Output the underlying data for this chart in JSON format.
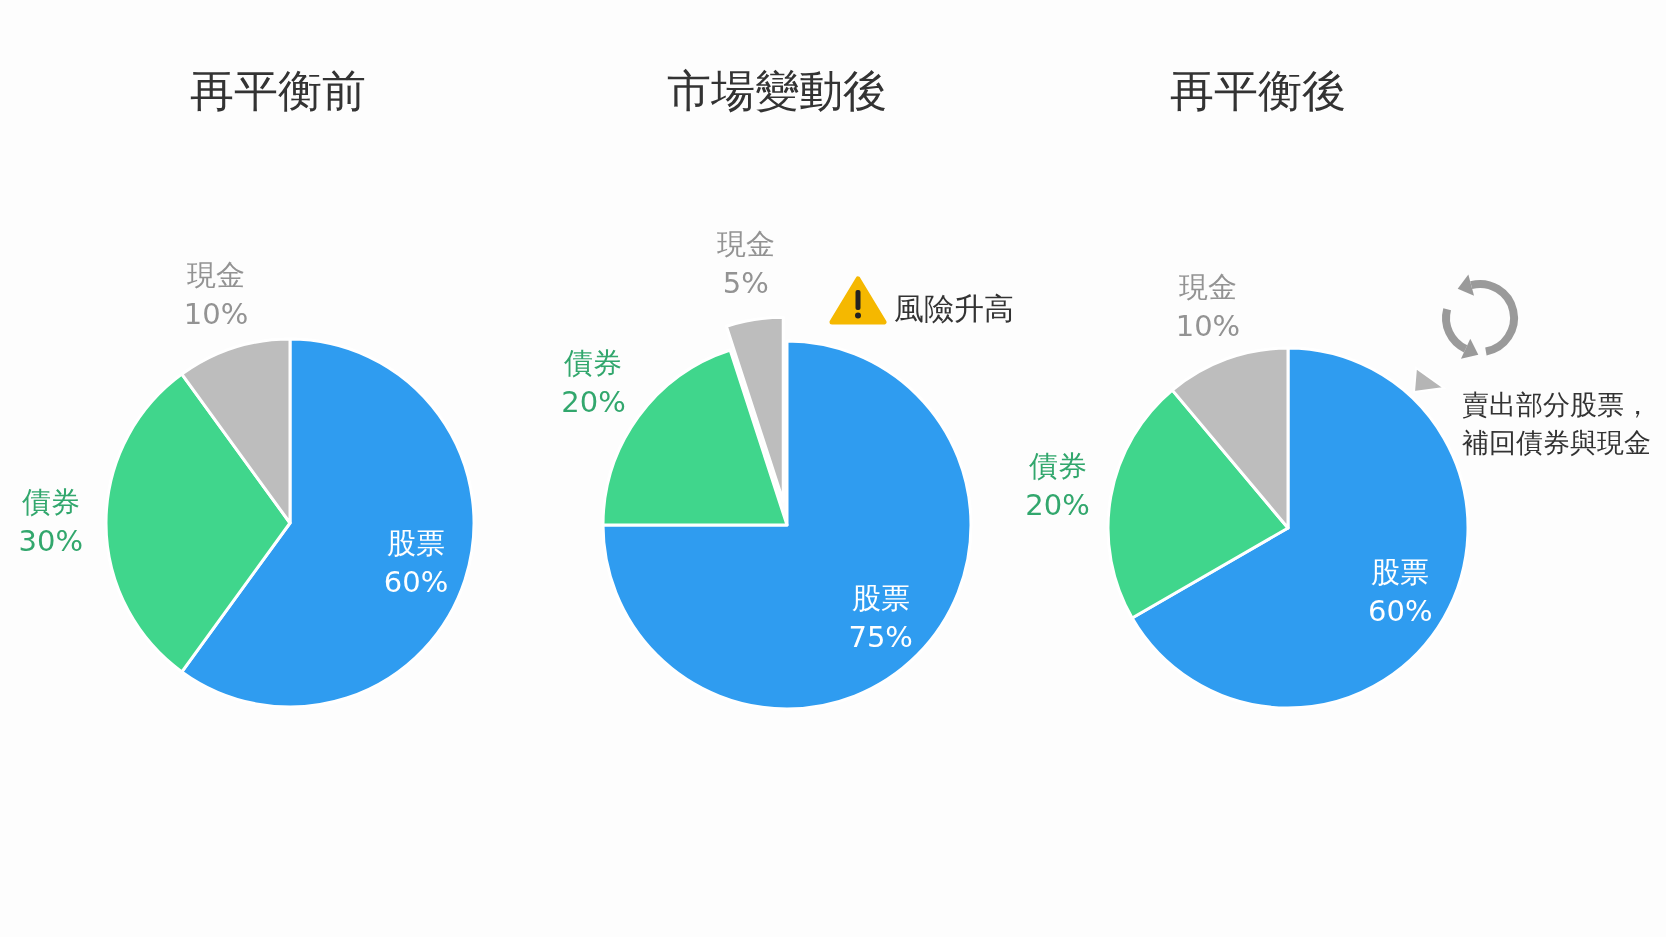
{
  "chart_data": [
    {
      "type": "pie",
      "title": "再平衡前",
      "categories": [
        "股票",
        "債券",
        "現金"
      ],
      "values": [
        60,
        30,
        10
      ],
      "colors": [
        "#2f9cf0",
        "#40d68c",
        "#bdbdbd"
      ],
      "value_labels": [
        "60%",
        "30%",
        "10%"
      ]
    },
    {
      "type": "pie",
      "title": "市場變動後",
      "categories": [
        "股票",
        "債券",
        "現金"
      ],
      "values": [
        75,
        20,
        5
      ],
      "colors": [
        "#2f9cf0",
        "#40d68c",
        "#bdbdbd"
      ],
      "value_labels": [
        "75%",
        "20%",
        "5%"
      ],
      "annotations": [
        "風險升高"
      ]
    },
    {
      "type": "pie",
      "title": "再平衡後",
      "categories": [
        "股票",
        "債券",
        "現金"
      ],
      "values": [
        60,
        20,
        10
      ],
      "colors": [
        "#2f9cf0",
        "#40d68c",
        "#bdbdbd"
      ],
      "value_labels": [
        "60%",
        "20%",
        "10%"
      ],
      "annotations": [
        "賣出部分股票，",
        "補回債券與現金"
      ]
    }
  ]
}
